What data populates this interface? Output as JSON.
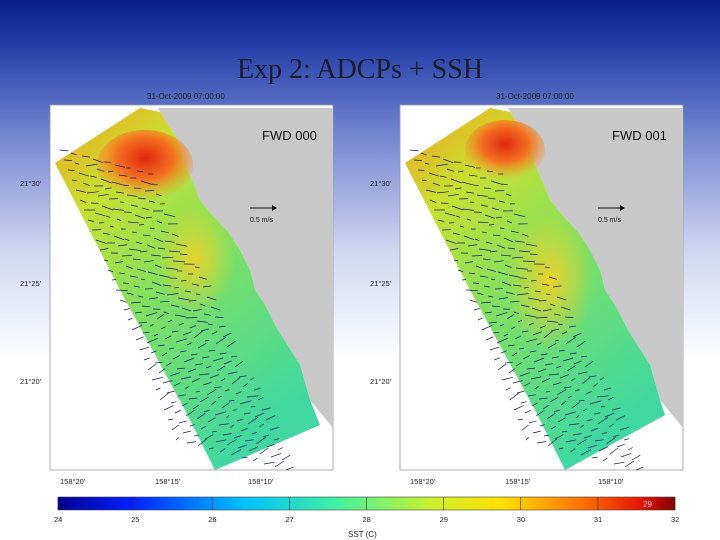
{
  "slide": {
    "title": "Exp 2: ADCPs + SSH"
  },
  "chart_data": [
    {
      "type": "heatmap",
      "timestamp": "31-Oct-2009 07:00:00",
      "label": "FWD 000",
      "scale_label": "0.5 m/s",
      "lat_ticks": [
        "21°30'",
        "21°25'",
        "21°20'"
      ],
      "lon_ticks": [
        "158°20'",
        "158°15'",
        "158°10'"
      ],
      "land_color": "#c8c8c8",
      "warm_core": "#e02810"
    },
    {
      "type": "heatmap",
      "timestamp": "31-Oct-2009 07:00:00",
      "label": "FWD 001",
      "scale_label": "0.5 m/s",
      "lat_ticks": [
        "21°30'",
        "21°25'",
        "21°20'"
      ],
      "lon_ticks": [
        "158°20'",
        "158°15'",
        "158°10'"
      ],
      "land_color": "#c8c8c8",
      "warm_core": "#e02810"
    }
  ],
  "colorbar": {
    "label": "SST (C)",
    "ticks": [
      "24",
      "25",
      "26",
      "27",
      "28",
      "29",
      "30",
      "31",
      "32"
    ],
    "range": [
      24,
      32
    ],
    "overflow_label": "29"
  }
}
